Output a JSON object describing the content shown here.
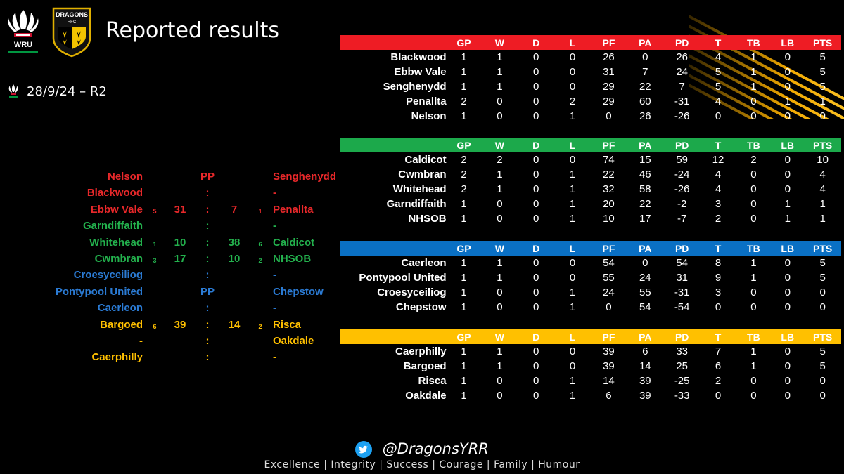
{
  "title": "Reported results",
  "round": "28/9/24 – R2",
  "logos": {
    "wru_text": "WRU",
    "dragons_text": "DRAGONS",
    "dragons_sub": "RFC"
  },
  "colors": {
    "red": "#ee1c24",
    "green": "#1ca94b",
    "blue": "#0a70c4",
    "yellow": "#ffc000"
  },
  "fixtures": [
    {
      "home": "Nelson",
      "hbp": "",
      "hsc": "",
      "mid": "PP",
      "asc": "",
      "abp": "",
      "away": "Senghenydd",
      "color": "red"
    },
    {
      "home": "Blackwood",
      "hbp": "",
      "hsc": "",
      "mid": ":",
      "asc": "",
      "abp": "",
      "away": "-",
      "color": "red"
    },
    {
      "home": "Ebbw Vale",
      "hbp": "5",
      "hsc": "31",
      "mid": ":",
      "asc": "7",
      "abp": "1",
      "away": "Penallta",
      "color": "red"
    },
    {
      "home": "Garndiffaith",
      "hbp": "",
      "hsc": "",
      "mid": ":",
      "asc": "",
      "abp": "",
      "away": "-",
      "color": "green"
    },
    {
      "home": "Whitehead",
      "hbp": "1",
      "hsc": "10",
      "mid": ":",
      "asc": "38",
      "abp": "6",
      "away": "Caldicot",
      "color": "green"
    },
    {
      "home": "Cwmbran",
      "hbp": "3",
      "hsc": "17",
      "mid": ":",
      "asc": "10",
      "abp": "2",
      "away": "NHSOB",
      "color": "green"
    },
    {
      "home": "Croesyceiliog",
      "hbp": "",
      "hsc": "",
      "mid": ":",
      "asc": "",
      "abp": "",
      "away": "-",
      "color": "blue"
    },
    {
      "home": "Pontypool United",
      "hbp": "",
      "hsc": "",
      "mid": "PP",
      "asc": "",
      "abp": "",
      "away": "Chepstow",
      "color": "blue"
    },
    {
      "home": "Caerleon",
      "hbp": "",
      "hsc": "",
      "mid": ":",
      "asc": "",
      "abp": "",
      "away": "-",
      "color": "blue"
    },
    {
      "home": "Bargoed",
      "hbp": "6",
      "hsc": "39",
      "mid": ":",
      "asc": "14",
      "abp": "2",
      "away": "Risca",
      "color": "yellow"
    },
    {
      "home": "-",
      "hbp": "",
      "hsc": "",
      "mid": ":",
      "asc": "",
      "abp": "",
      "away": "Oakdale",
      "color": "yellow"
    },
    {
      "home": "Caerphilly",
      "hbp": "",
      "hsc": "",
      "mid": ":",
      "asc": "",
      "abp": "",
      "away": "-",
      "color": "yellow"
    }
  ],
  "headers": [
    "",
    "GP",
    "W",
    "D",
    "L",
    "PF",
    "PA",
    "PD",
    "T",
    "TB",
    "LB",
    "PTS"
  ],
  "tables": [
    {
      "color": "red",
      "rows": [
        [
          "Blackwood",
          "1",
          "1",
          "0",
          "0",
          "26",
          "0",
          "26",
          "4",
          "1",
          "0",
          "5"
        ],
        [
          "Ebbw Vale",
          "1",
          "1",
          "0",
          "0",
          "31",
          "7",
          "24",
          "5",
          "1",
          "0",
          "5"
        ],
        [
          "Senghenydd",
          "1",
          "1",
          "0",
          "0",
          "29",
          "22",
          "7",
          "5",
          "1",
          "0",
          "5"
        ],
        [
          "Penallta",
          "2",
          "0",
          "0",
          "2",
          "29",
          "60",
          "-31",
          "4",
          "0",
          "1",
          "1"
        ],
        [
          "Nelson",
          "1",
          "0",
          "0",
          "1",
          "0",
          "26",
          "-26",
          "0",
          "0",
          "0",
          "0"
        ]
      ]
    },
    {
      "color": "green",
      "rows": [
        [
          "Caldicot",
          "2",
          "2",
          "0",
          "0",
          "74",
          "15",
          "59",
          "12",
          "2",
          "0",
          "10"
        ],
        [
          "Cwmbran",
          "2",
          "1",
          "0",
          "1",
          "22",
          "46",
          "-24",
          "4",
          "0",
          "0",
          "4"
        ],
        [
          "Whitehead",
          "2",
          "1",
          "0",
          "1",
          "32",
          "58",
          "-26",
          "4",
          "0",
          "0",
          "4"
        ],
        [
          "Garndiffaith",
          "1",
          "0",
          "0",
          "1",
          "20",
          "22",
          "-2",
          "3",
          "0",
          "1",
          "1"
        ],
        [
          "NHSOB",
          "1",
          "0",
          "0",
          "1",
          "10",
          "17",
          "-7",
          "2",
          "0",
          "1",
          "1"
        ]
      ]
    },
    {
      "color": "blue",
      "rows": [
        [
          "Caerleon",
          "1",
          "1",
          "0",
          "0",
          "54",
          "0",
          "54",
          "8",
          "1",
          "0",
          "5"
        ],
        [
          "Pontypool United",
          "1",
          "1",
          "0",
          "0",
          "55",
          "24",
          "31",
          "9",
          "1",
          "0",
          "5"
        ],
        [
          "Croesyceiliog",
          "1",
          "0",
          "0",
          "1",
          "24",
          "55",
          "-31",
          "3",
          "0",
          "0",
          "0"
        ],
        [
          "Chepstow",
          "1",
          "0",
          "0",
          "1",
          "0",
          "54",
          "-54",
          "0",
          "0",
          "0",
          "0"
        ]
      ]
    },
    {
      "color": "yellow",
      "rows": [
        [
          "Caerphilly",
          "1",
          "1",
          "0",
          "0",
          "39",
          "6",
          "33",
          "7",
          "1",
          "0",
          "5"
        ],
        [
          "Bargoed",
          "1",
          "1",
          "0",
          "0",
          "39",
          "14",
          "25",
          "6",
          "1",
          "0",
          "5"
        ],
        [
          "Risca",
          "1",
          "0",
          "0",
          "1",
          "14",
          "39",
          "-25",
          "2",
          "0",
          "0",
          "0"
        ],
        [
          "Oakdale",
          "1",
          "0",
          "0",
          "1",
          "6",
          "39",
          "-33",
          "0",
          "0",
          "0",
          "0"
        ]
      ]
    }
  ],
  "footer": {
    "handle": "@DragonsYRR",
    "values": "Excellence | Integrity | Success | Courage | Family | Humour"
  }
}
